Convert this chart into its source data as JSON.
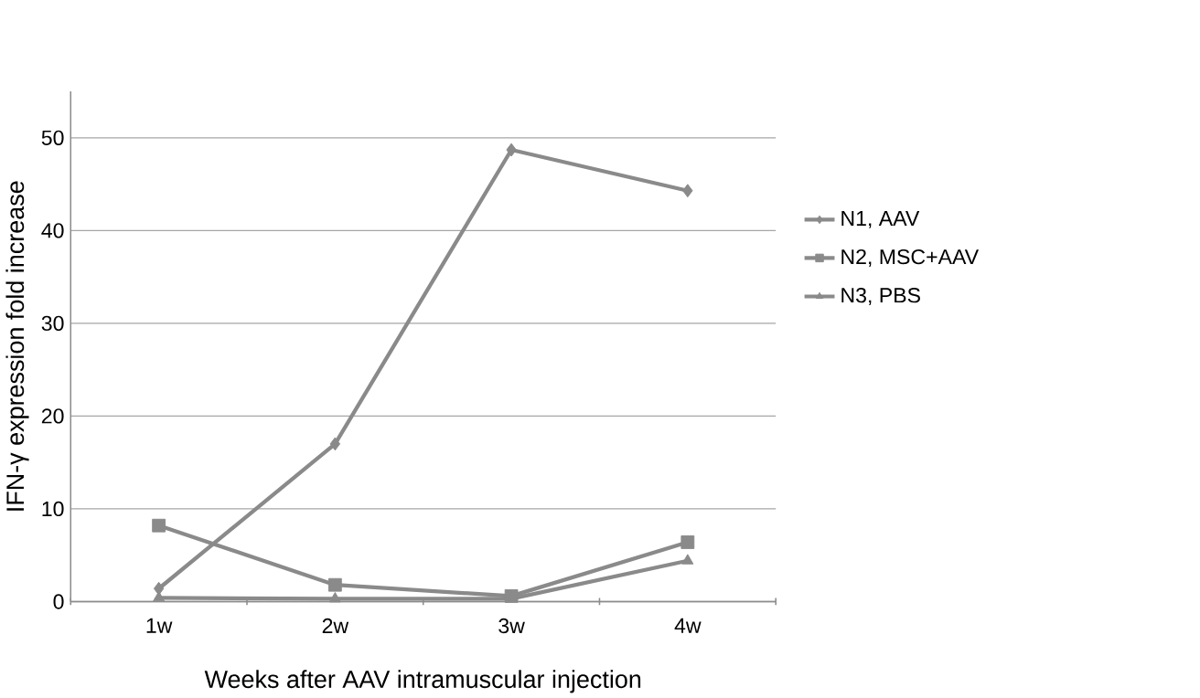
{
  "chart_data": {
    "type": "line",
    "xlabel": "Weeks after AAV intramuscular injection",
    "ylabel": "IFN-γ expression fold increase",
    "categories": [
      "1w",
      "2w",
      "3w",
      "4w"
    ],
    "series": [
      {
        "name": "N1, AAV",
        "color": "#8a8a8a",
        "marker": "diamond",
        "values": [
          1.4,
          17.0,
          48.7,
          44.3
        ]
      },
      {
        "name": "N2, MSC+AAV",
        "color": "#8a8a8a",
        "marker": "square",
        "values": [
          8.2,
          1.8,
          0.6,
          6.4
        ]
      },
      {
        "name": "N3, PBS",
        "color": "#8a8a8a",
        "marker": "triangle",
        "values": [
          0.4,
          0.3,
          0.3,
          4.4
        ]
      }
    ],
    "ylim": [
      0,
      55
    ],
    "yticks": [
      0,
      10,
      20,
      30,
      40,
      50
    ],
    "grid": "y",
    "legend": "right",
    "line_style": "solid"
  }
}
